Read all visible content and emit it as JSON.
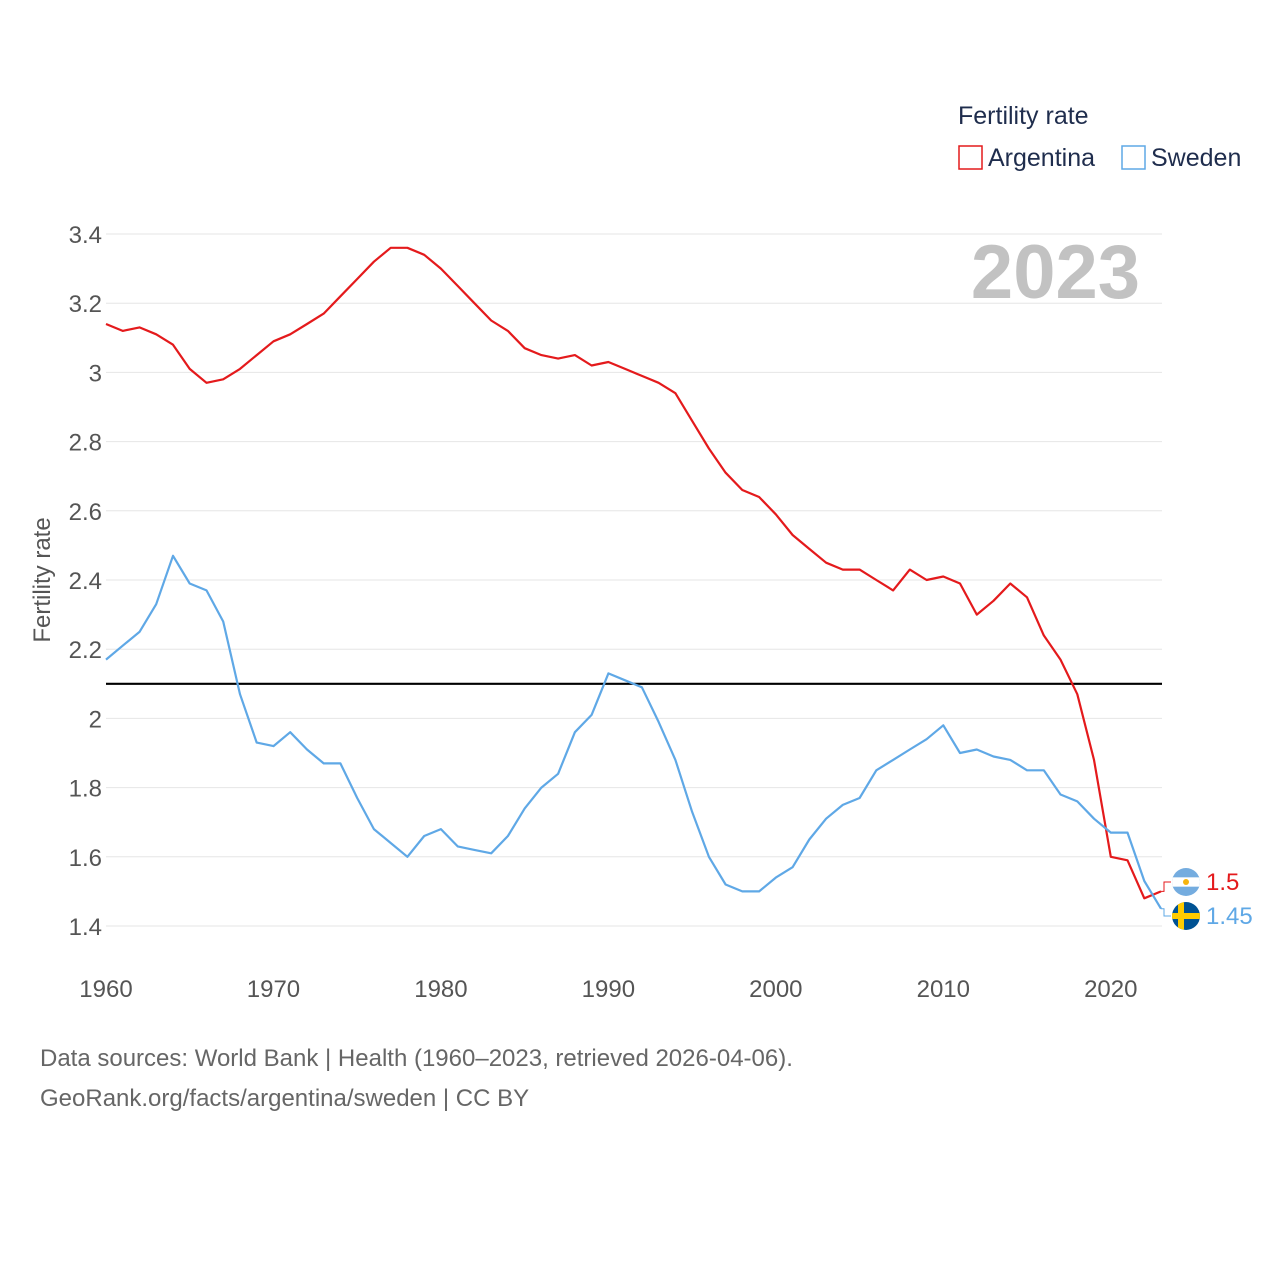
{
  "footer": {
    "line1": "Data sources: World Bank | Health (1960–2023, retrieved 2026-04-06).",
    "line2": "GeoRank.org/facts/argentina/sweden | CC BY"
  },
  "chart_data": {
    "type": "line",
    "title": "2023",
    "xlabel": "",
    "ylabel": "Fertility rate",
    "legend_title": "Fertility rate",
    "legend_position": "top-right",
    "xlim": [
      1960,
      2023
    ],
    "ylim": [
      1.3,
      3.45
    ],
    "x_ticks": [
      1960,
      1970,
      1980,
      1990,
      2000,
      2010,
      2020
    ],
    "y_ticks": [
      1.4,
      1.6,
      1.8,
      2,
      2.2,
      2.4,
      2.6,
      2.8,
      3,
      3.2,
      3.4
    ],
    "y_tick_labels": [
      "1.4",
      "1.6",
      "1.8",
      "2",
      "2.2",
      "2.4",
      "2.6",
      "2.8",
      "3",
      "3.2",
      "3.4"
    ],
    "x_tick_labels": [
      "1960",
      "1970",
      "1980",
      "1990",
      "2000",
      "2010",
      "2020"
    ],
    "grid": true,
    "reference_line": {
      "y": 2.1,
      "color": "#000000"
    },
    "x": [
      1960,
      1961,
      1962,
      1963,
      1964,
      1965,
      1966,
      1967,
      1968,
      1969,
      1970,
      1971,
      1972,
      1973,
      1974,
      1975,
      1976,
      1977,
      1978,
      1979,
      1980,
      1981,
      1982,
      1983,
      1984,
      1985,
      1986,
      1987,
      1988,
      1989,
      1990,
      1991,
      1992,
      1993,
      1994,
      1995,
      1996,
      1997,
      1998,
      1999,
      2000,
      2001,
      2002,
      2003,
      2004,
      2005,
      2006,
      2007,
      2008,
      2009,
      2010,
      2011,
      2012,
      2013,
      2014,
      2015,
      2016,
      2017,
      2018,
      2019,
      2020,
      2021,
      2022,
      2023
    ],
    "series": [
      {
        "name": "Argentina",
        "color": "#e41a1c",
        "flag": "argentina-flag-icon",
        "end_label": "1.5",
        "values": [
          3.14,
          3.12,
          3.13,
          3.11,
          3.08,
          3.01,
          2.97,
          2.98,
          3.01,
          3.05,
          3.09,
          3.11,
          3.14,
          3.17,
          3.22,
          3.27,
          3.32,
          3.36,
          3.36,
          3.34,
          3.3,
          3.25,
          3.2,
          3.15,
          3.12,
          3.07,
          3.05,
          3.04,
          3.05,
          3.02,
          3.03,
          3.01,
          2.99,
          2.97,
          2.94,
          2.86,
          2.78,
          2.71,
          2.66,
          2.64,
          2.59,
          2.53,
          2.49,
          2.45,
          2.43,
          2.43,
          2.4,
          2.37,
          2.43,
          2.4,
          2.41,
          2.39,
          2.3,
          2.34,
          2.39,
          2.35,
          2.24,
          2.17,
          2.07,
          1.88,
          1.6,
          1.59,
          1.48,
          1.5
        ]
      },
      {
        "name": "Sweden",
        "color": "#5fa8e6",
        "flag": "sweden-flag-icon",
        "end_label": "1.45",
        "values": [
          2.17,
          2.21,
          2.25,
          2.33,
          2.47,
          2.39,
          2.37,
          2.28,
          2.07,
          1.93,
          1.92,
          1.96,
          1.91,
          1.87,
          1.87,
          1.77,
          1.68,
          1.64,
          1.6,
          1.66,
          1.68,
          1.63,
          1.62,
          1.61,
          1.66,
          1.74,
          1.8,
          1.84,
          1.96,
          2.01,
          2.13,
          2.11,
          2.09,
          1.99,
          1.88,
          1.73,
          1.6,
          1.52,
          1.5,
          1.5,
          1.54,
          1.57,
          1.65,
          1.71,
          1.75,
          1.77,
          1.85,
          1.88,
          1.91,
          1.94,
          1.98,
          1.9,
          1.91,
          1.89,
          1.88,
          1.85,
          1.85,
          1.78,
          1.76,
          1.71,
          1.67,
          1.67,
          1.53,
          1.45
        ]
      }
    ]
  }
}
